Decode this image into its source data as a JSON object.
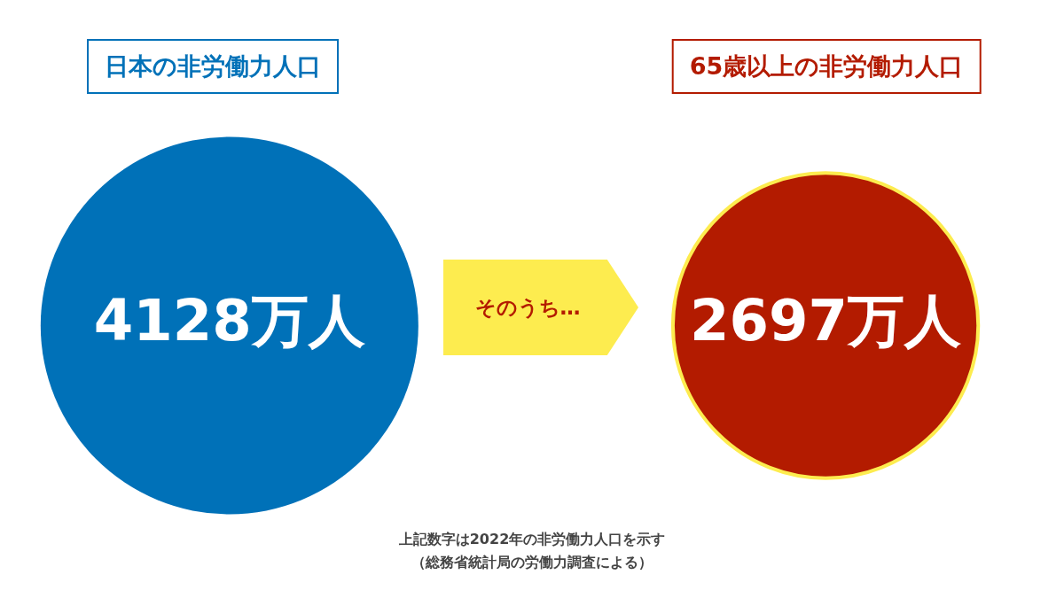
{
  "chart_data": {
    "type": "other",
    "categories": [
      "日本の非労働力人口",
      "65歳以上の非労働力人口"
    ],
    "values": [
      4128,
      2697
    ],
    "value_labels": [
      "4128万人",
      "2697万人"
    ],
    "colors": [
      "#0071b8",
      "#b31b00"
    ],
    "annotations": [
      "そのうち…",
      "上記数字は2022年の非労働力人口を示す",
      "（総務省統計局の労働力調査による）"
    ]
  }
}
